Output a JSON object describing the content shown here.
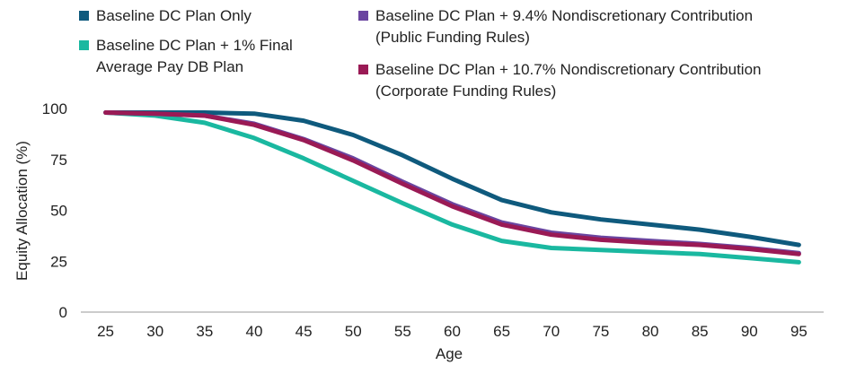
{
  "chart_data": {
    "type": "line",
    "xlabel": "Age",
    "ylabel": "Equity Allocation (%)",
    "x": [
      25,
      30,
      35,
      40,
      45,
      50,
      55,
      60,
      65,
      70,
      75,
      80,
      85,
      90,
      95
    ],
    "xlim": [
      22.5,
      97.5
    ],
    "ylim": [
      0,
      100
    ],
    "yticks": [
      0,
      25,
      50,
      75,
      100
    ],
    "grid": false,
    "legend_position": "top",
    "series": [
      {
        "name": "Baseline DC Plan Only",
        "color": "#0f5a7d",
        "values": [
          98,
          98,
          98,
          97.5,
          94,
          87,
          77,
          65.5,
          55,
          49,
          45.5,
          43,
          40.5,
          37,
          33
        ]
      },
      {
        "name": "Baseline DC Plan + 1% Final\nAverage Pay DB Plan",
        "color": "#1ab8a0",
        "values": [
          98,
          96.5,
          93,
          85.5,
          75.5,
          64.5,
          53.5,
          43,
          35,
          31.5,
          30.5,
          29.5,
          28.5,
          26.5,
          24.5
        ]
      },
      {
        "name": "Baseline DC Plan + 9.4% Nondiscretionary Contribution\n(Public Funding Rules)",
        "color": "#6a45a0",
        "values": [
          98,
          97.5,
          96.5,
          92.5,
          85,
          75.5,
          64,
          53,
          44,
          39,
          36.5,
          35,
          33.5,
          31.5,
          29
        ]
      },
      {
        "name": "Baseline DC Plan + 10.7% Nondiscretionary Contribution\n(Corporate Funding Rules)",
        "color": "#9a1a55",
        "values": [
          98,
          97.5,
          96.5,
          92,
          84.5,
          74.5,
          63,
          52,
          43,
          38,
          35.5,
          34,
          33,
          31,
          28.5
        ]
      }
    ]
  }
}
